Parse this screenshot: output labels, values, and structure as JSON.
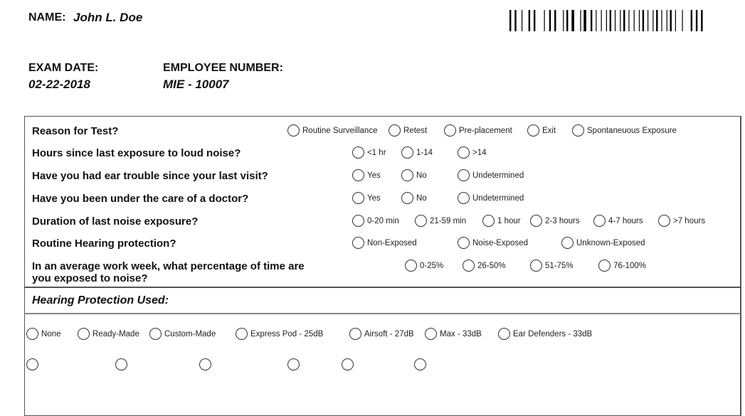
{
  "header": {
    "name_label": "NAME:",
    "name_value": "John L. Doe",
    "exam_date_label": "EXAM DATE:",
    "exam_date_value": "02-22-2018",
    "employee_number_label": "EMPLOYEE NUMBER:",
    "employee_number_value": "MIE - 10007"
  },
  "questions": [
    {
      "text": "Reason for Test?",
      "options": [
        "Routine Surveillance",
        "Retest",
        "Pre-placement",
        "Exit",
        "Spontaneuous Exposure"
      ]
    },
    {
      "text": "Hours since last exposure to loud noise?",
      "options": [
        "<1 hr",
        "1-14",
        ">14"
      ]
    },
    {
      "text": "Have you had ear trouble since your last visit?",
      "options": [
        "Yes",
        "No",
        "Undetermined"
      ]
    },
    {
      "text": "Have you been under the care of a doctor?",
      "options": [
        "Yes",
        "No",
        "Undetermined"
      ]
    },
    {
      "text": "Duration of last noise exposure?",
      "options": [
        "0-20 min",
        "21-59 min",
        "1 hour",
        "2-3 hours",
        "4-7 hours",
        ">7 hours"
      ]
    },
    {
      "text": "Routine Hearing protection?",
      "options": [
        "Non-Exposed",
        "Noise-Exposed",
        "Unknown-Exposed"
      ]
    },
    {
      "text": "In an average work week, what percentage of time are",
      "text2": "you exposed to noise?",
      "options": [
        "0-25%",
        "26-50%",
        "51-75%",
        "76-100%"
      ]
    }
  ],
  "hearing_protection": {
    "title": "Hearing Protection Used:",
    "options": [
      "None",
      "Ready-Made",
      "Custom-Made",
      "Express Pod - 25dB",
      "Airsoft - 27dB",
      "Max - 33dB",
      "Ear Defenders - 33dB"
    ]
  }
}
